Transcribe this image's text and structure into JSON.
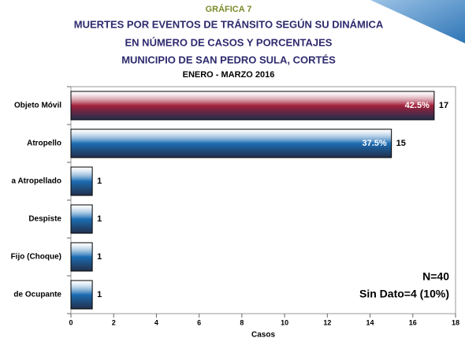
{
  "chart_data": {
    "type": "hbar",
    "kicker": "GRÁFICA 7",
    "title_lines": [
      "MUERTES POR EVENTOS DE TRÁNSITO SEGÚN SU DINÁMICA",
      "EN NÚMERO DE CASOS Y PORCENTAJES",
      "MUNICIPIO DE SAN PEDRO SULA, CORTÉS"
    ],
    "subtitle": "ENERO - MARZO 2016",
    "categories": [
      "Objeto Móvil",
      "Atropello",
      "a Atropellado",
      "Despiste",
      "Fijo (Choque)",
      "de Ocupante"
    ],
    "values": [
      17,
      15,
      1,
      1,
      1,
      1
    ],
    "percent_labels": [
      "42.5%",
      "37.5%",
      null,
      null,
      null,
      null
    ],
    "colors": [
      "#a31f3a",
      "#1c6db3",
      "#1c6db3",
      "#1c6db3",
      "#1c6db3",
      "#1c6db3"
    ],
    "xlabel": "Casos",
    "xlim": [
      0,
      18
    ],
    "xticks": [
      0,
      2,
      4,
      6,
      8,
      10,
      12,
      14,
      16,
      18
    ],
    "annotations": [
      "N=40",
      "Sin Dato=4 (10%)"
    ]
  }
}
